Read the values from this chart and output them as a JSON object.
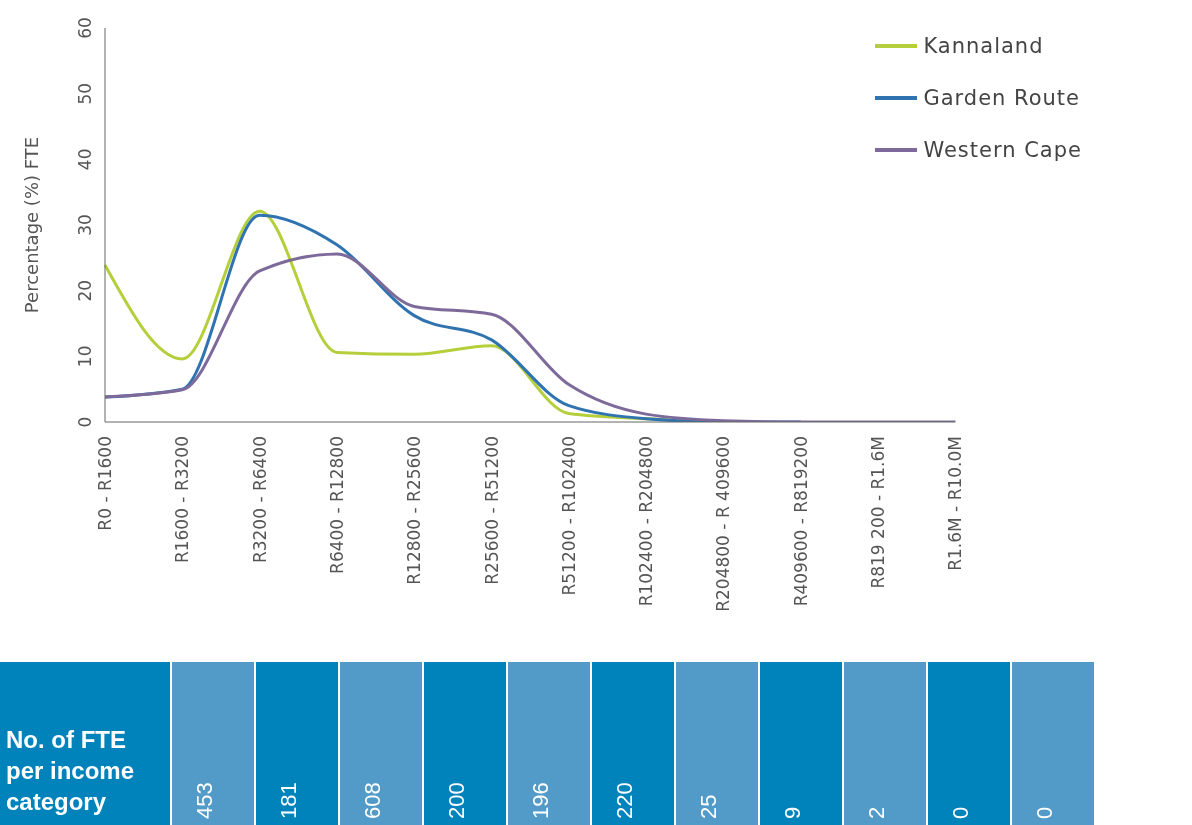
{
  "chart_data": {
    "type": "line",
    "ylabel": "Percentage (%) FTE",
    "categories": [
      "R0 - R1600",
      "R1600 - R3200",
      "R3200 - R6400",
      "R6400 - R12800",
      "R12800 - R25600",
      "R25600 - R51200",
      "R51200 - R102400",
      "R102400 - R204800",
      "R204800 - R 409600",
      "R409600 - R819200",
      "R819 200 - R1.6M",
      "R1.6M - R10.0M"
    ],
    "series": [
      {
        "name": "Kannaland",
        "color": "#b5cf3c",
        "values": [
          23.9,
          9.6,
          32.1,
          10.6,
          10.3,
          11.6,
          1.3,
          0.5,
          0.1,
          null,
          null,
          null
        ]
      },
      {
        "name": "Garden Route",
        "color": "#2f73b0",
        "values": [
          3.8,
          5,
          31.5,
          27,
          16.2,
          12.5,
          2.5,
          0.5,
          0,
          0,
          null,
          null
        ]
      },
      {
        "name": "Western Cape",
        "color": "#7e6a9a",
        "values": [
          3.8,
          4.9,
          23,
          25.6,
          17.6,
          16.4,
          5.7,
          1.2,
          0.2,
          0,
          0,
          0
        ]
      }
    ],
    "ylim": [
      0,
      60
    ],
    "yticks": [
      0,
      10,
      20,
      30,
      40,
      50,
      60
    ],
    "legend": "top right",
    "marker": "none",
    "line_style": "solid",
    "annotations": [
      "No. of FTE per income category",
      "453",
      "181",
      "608",
      "200",
      "196",
      "220",
      "25",
      "9",
      "2",
      "0",
      "0"
    ]
  }
}
